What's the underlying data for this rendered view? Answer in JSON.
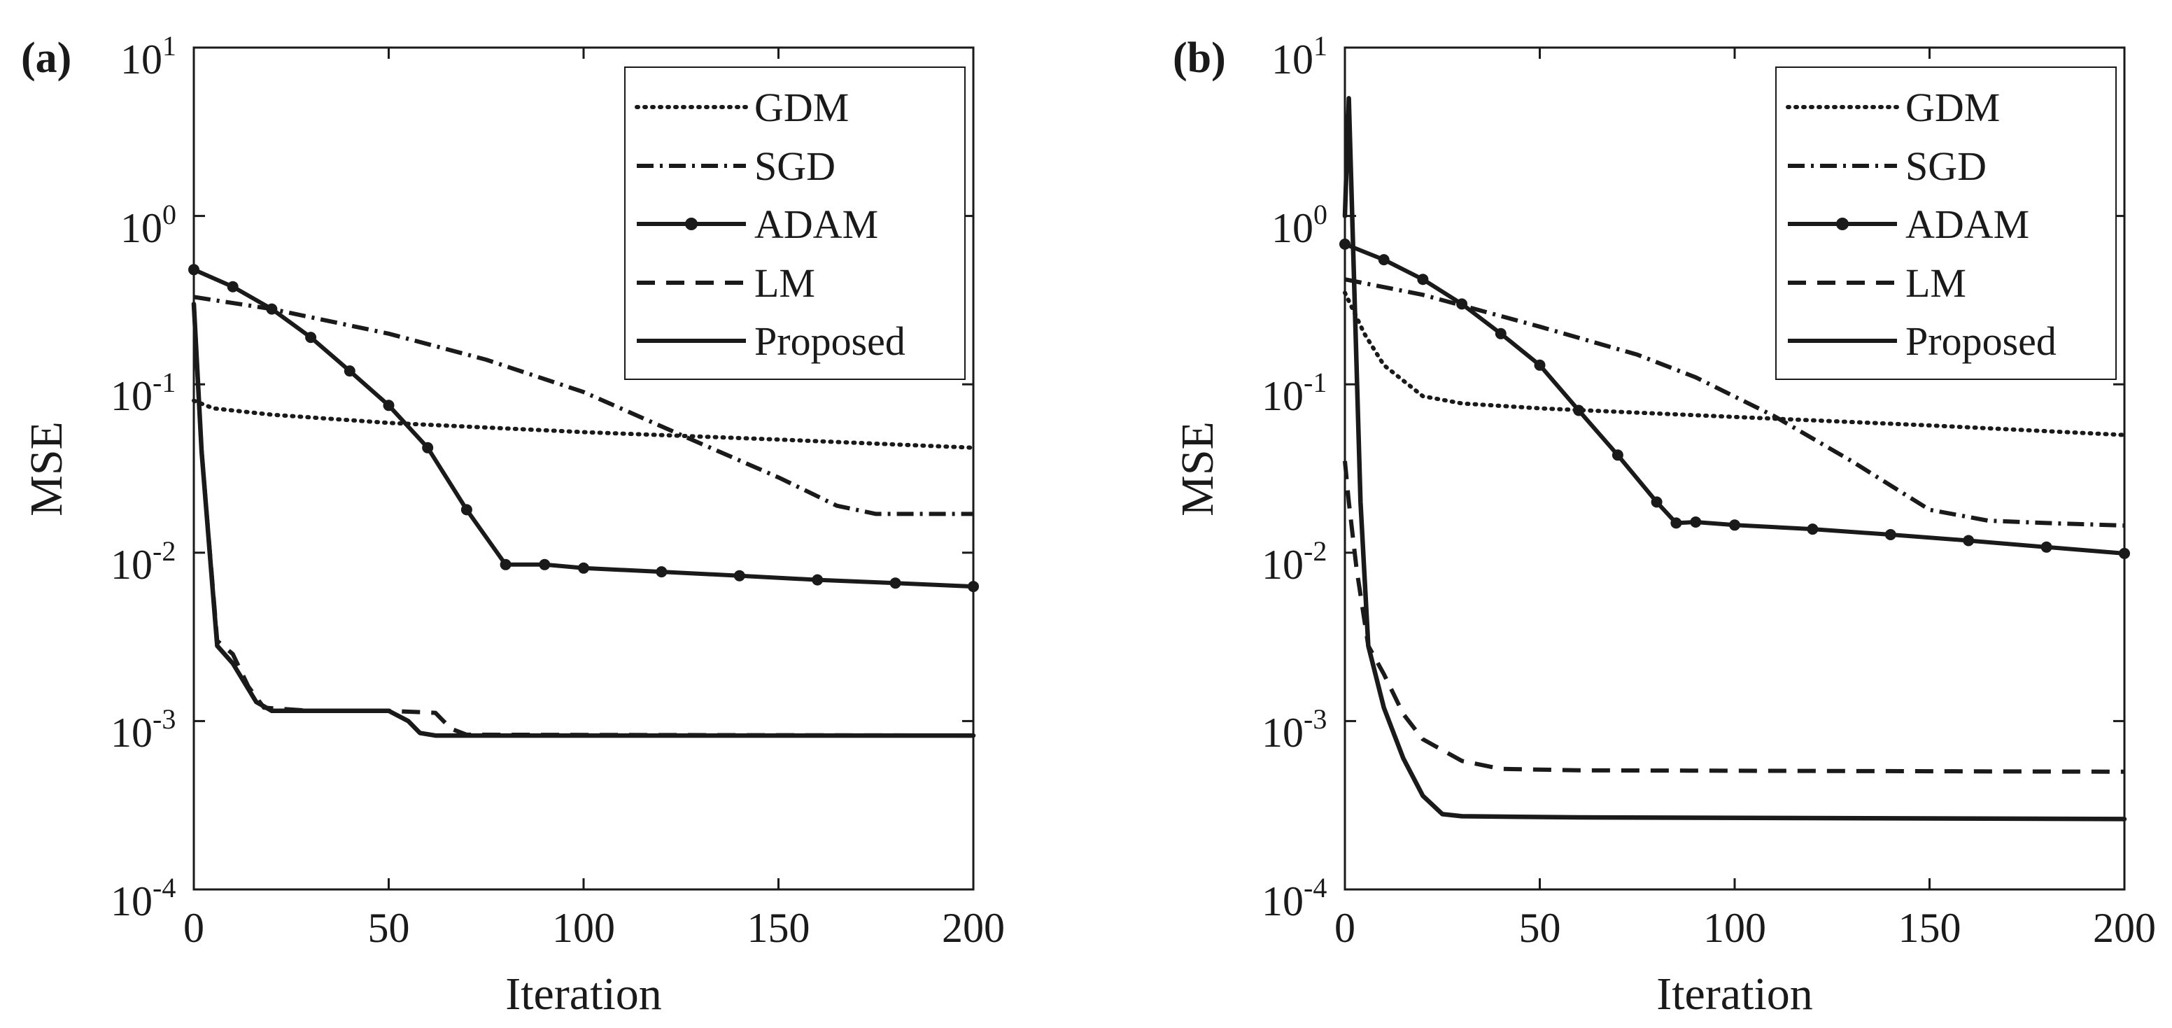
{
  "colors": {
    "line": "#1a1a1a",
    "background": "#ffffff"
  },
  "chart_data": [
    {
      "panel_label": "(a)",
      "type": "line",
      "xlabel": "Iteration",
      "ylabel": "MSE",
      "xlim": [
        0,
        200
      ],
      "ylim": [
        0.0001,
        10
      ],
      "yscale": "log",
      "xticks": [
        "0",
        "50",
        "100",
        "150",
        "200"
      ],
      "yticks": [
        {
          "base": "10",
          "exp": "1"
        },
        {
          "base": "10",
          "exp": "0"
        },
        {
          "base": "10",
          "exp": "-1"
        },
        {
          "base": "10",
          "exp": "-2"
        },
        {
          "base": "10",
          "exp": "-3"
        },
        {
          "base": "10",
          "exp": "-4"
        }
      ],
      "legend_position": "top-right",
      "series": [
        {
          "name": "GDM",
          "style": "dotted",
          "points": [
            [
              0,
              0.08
            ],
            [
              5,
              0.072
            ],
            [
              20,
              0.066
            ],
            [
              50,
              0.059
            ],
            [
              100,
              0.052
            ],
            [
              150,
              0.047
            ],
            [
              200,
              0.042
            ]
          ]
        },
        {
          "name": "SGD",
          "style": "dashdot",
          "points": [
            [
              0,
              0.33
            ],
            [
              20,
              0.28
            ],
            [
              50,
              0.2
            ],
            [
              75,
              0.14
            ],
            [
              100,
              0.09
            ],
            [
              125,
              0.05
            ],
            [
              150,
              0.028
            ],
            [
              165,
              0.019
            ],
            [
              175,
              0.017
            ],
            [
              200,
              0.017
            ]
          ]
        },
        {
          "name": "ADAM",
          "style": "solid-dot",
          "points": [
            [
              0,
              0.48
            ],
            [
              10,
              0.38
            ],
            [
              20,
              0.28
            ],
            [
              30,
              0.19
            ],
            [
              40,
              0.12
            ],
            [
              50,
              0.075
            ],
            [
              60,
              0.042
            ],
            [
              70,
              0.018
            ],
            [
              80,
              0.0085
            ],
            [
              90,
              0.0085
            ],
            [
              100,
              0.0081
            ],
            [
              120,
              0.0077
            ],
            [
              140,
              0.0073
            ],
            [
              160,
              0.0069
            ],
            [
              180,
              0.0066
            ],
            [
              200,
              0.0063
            ]
          ]
        },
        {
          "name": "LM",
          "style": "dashed",
          "points": [
            [
              0,
              0.3
            ],
            [
              2,
              0.04
            ],
            [
              6,
              0.003
            ],
            [
              10,
              0.0025
            ],
            [
              14,
              0.0016
            ],
            [
              18,
              0.0012
            ],
            [
              30,
              0.00115
            ],
            [
              50,
              0.00115
            ],
            [
              62,
              0.00112
            ],
            [
              66,
              0.0009
            ],
            [
              70,
              0.00083
            ],
            [
              200,
              0.00082
            ]
          ]
        },
        {
          "name": "Proposed",
          "style": "solid",
          "points": [
            [
              0,
              0.3
            ],
            [
              2,
              0.04
            ],
            [
              6,
              0.0028
            ],
            [
              10,
              0.0022
            ],
            [
              16,
              0.0013
            ],
            [
              20,
              0.00115
            ],
            [
              50,
              0.00115
            ],
            [
              55,
              0.001
            ],
            [
              58,
              0.00085
            ],
            [
              62,
              0.00082
            ],
            [
              200,
              0.00082
            ]
          ]
        }
      ]
    },
    {
      "panel_label": "(b)",
      "type": "line",
      "xlabel": "Iteration",
      "ylabel": "MSE",
      "xlim": [
        0,
        200
      ],
      "ylim": [
        0.0001,
        10
      ],
      "yscale": "log",
      "xticks": [
        "0",
        "50",
        "100",
        "150",
        "200"
      ],
      "yticks": [
        {
          "base": "10",
          "exp": "1"
        },
        {
          "base": "10",
          "exp": "0"
        },
        {
          "base": "10",
          "exp": "-1"
        },
        {
          "base": "10",
          "exp": "-2"
        },
        {
          "base": "10",
          "exp": "-3"
        },
        {
          "base": "10",
          "exp": "-4"
        }
      ],
      "legend_position": "top-right",
      "series": [
        {
          "name": "GDM",
          "style": "dotted",
          "points": [
            [
              0,
              0.35
            ],
            [
              5,
              0.2
            ],
            [
              10,
              0.13
            ],
            [
              20,
              0.085
            ],
            [
              30,
              0.077
            ],
            [
              50,
              0.072
            ],
            [
              100,
              0.064
            ],
            [
              150,
              0.057
            ],
            [
              200,
              0.05
            ]
          ]
        },
        {
          "name": "SGD",
          "style": "dashdot",
          "points": [
            [
              0,
              0.42
            ],
            [
              20,
              0.34
            ],
            [
              50,
              0.22
            ],
            [
              75,
              0.15
            ],
            [
              90,
              0.11
            ],
            [
              110,
              0.065
            ],
            [
              130,
              0.035
            ],
            [
              150,
              0.018
            ],
            [
              165,
              0.0155
            ],
            [
              180,
              0.015
            ],
            [
              200,
              0.0145
            ]
          ]
        },
        {
          "name": "ADAM",
          "style": "solid-dot",
          "points": [
            [
              0,
              0.68
            ],
            [
              10,
              0.55
            ],
            [
              20,
              0.42
            ],
            [
              30,
              0.3
            ],
            [
              40,
              0.2
            ],
            [
              50,
              0.13
            ],
            [
              60,
              0.07
            ],
            [
              70,
              0.038
            ],
            [
              80,
              0.02
            ],
            [
              85,
              0.015
            ],
            [
              90,
              0.0152
            ],
            [
              100,
              0.0146
            ],
            [
              120,
              0.0138
            ],
            [
              140,
              0.0128
            ],
            [
              160,
              0.0118
            ],
            [
              180,
              0.0108
            ],
            [
              200,
              0.0099
            ]
          ]
        },
        {
          "name": "LM",
          "style": "dashed",
          "points": [
            [
              0,
              0.035
            ],
            [
              1,
              0.02
            ],
            [
              3,
              0.008
            ],
            [
              6,
              0.0028
            ],
            [
              10,
              0.0019
            ],
            [
              15,
              0.0011
            ],
            [
              20,
              0.00078
            ],
            [
              30,
              0.00058
            ],
            [
              40,
              0.00052
            ],
            [
              60,
              0.00051
            ],
            [
              200,
              0.0005
            ]
          ]
        },
        {
          "name": "Proposed",
          "style": "solid",
          "points": [
            [
              0,
              1
            ],
            [
              1,
              5
            ],
            [
              2,
              0.8
            ],
            [
              4,
              0.02
            ],
            [
              6,
              0.0028
            ],
            [
              10,
              0.0012
            ],
            [
              15,
              0.0006
            ],
            [
              20,
              0.00036
            ],
            [
              25,
              0.00028
            ],
            [
              30,
              0.000272
            ],
            [
              60,
              0.000268
            ],
            [
              200,
              0.000262
            ]
          ]
        }
      ]
    }
  ]
}
